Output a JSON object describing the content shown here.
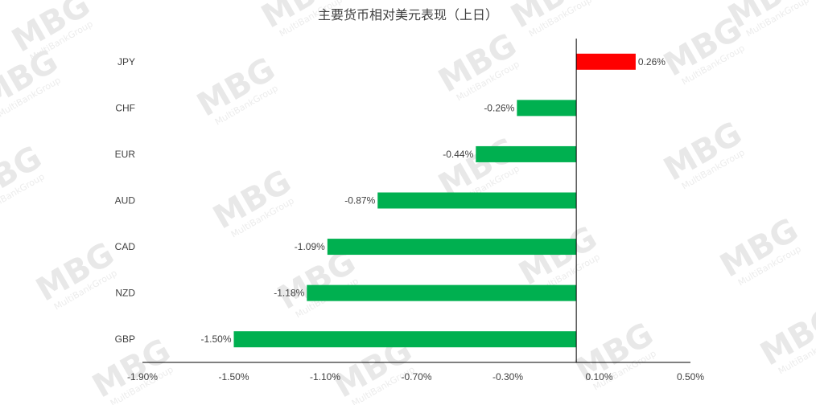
{
  "watermark": {
    "logo": "MBG",
    "subtitle": "MultiBankGroup"
  },
  "colors": {
    "positive": "#ff0000",
    "negative": "#00b050",
    "axis": "#000000",
    "text": "#404040"
  },
  "chart_data": {
    "type": "bar",
    "orientation": "horizontal",
    "title": "主要货币相对美元表现（上日）",
    "xlabel": "",
    "ylabel": "",
    "categories": [
      "JPY",
      "CHF",
      "EUR",
      "AUD",
      "CAD",
      "NZD",
      "GBP"
    ],
    "values": [
      0.26,
      -0.26,
      -0.44,
      -0.87,
      -1.09,
      -1.18,
      -1.5
    ],
    "data_labels": [
      "0.26%",
      "-0.26%",
      "-0.44%",
      "-0.87%",
      "-1.09%",
      "-1.18%",
      "-1.50%"
    ],
    "xlim": [
      -1.9,
      0.5
    ],
    "x_ticks": [
      -1.9,
      -1.5,
      -1.1,
      -0.7,
      -0.3,
      0.1,
      0.5
    ],
    "x_tick_labels": [
      "-1.90%",
      "-1.50%",
      "-1.10%",
      "-0.70%",
      "-0.30%",
      "0.10%",
      "0.50%"
    ],
    "grid": false,
    "legend": "none"
  }
}
